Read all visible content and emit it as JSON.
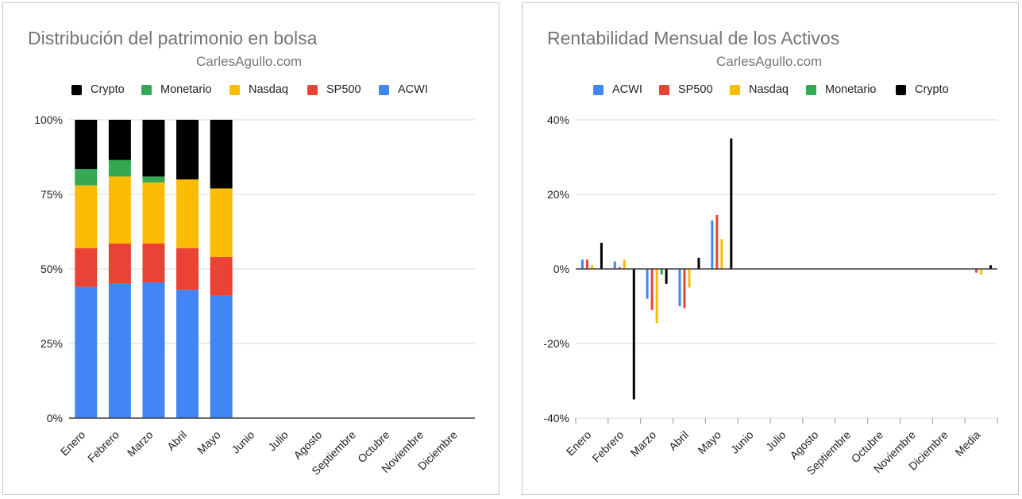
{
  "colors": {
    "ACWI": "#4285f4",
    "SP500": "#ea4335",
    "Nasdaq": "#fbbc04",
    "Monetario": "#34a853",
    "Crypto": "#000000",
    "grid": "#d9d9d9",
    "baseline": "#333333",
    "text": "#222222",
    "title": "#757575"
  },
  "chart_data": [
    {
      "type": "bar",
      "stacked": "percent",
      "title": "Distribución del patrimonio en bolsa",
      "subtitle": "CarlesAgullo.com",
      "legend_position": "top",
      "legend": [
        "Crypto",
        "Monetario",
        "Nasdaq",
        "SP500",
        "ACWI"
      ],
      "categories": [
        "Enero",
        "Febrero",
        "Marzo",
        "Abril",
        "Mayo",
        "Junio",
        "Julio",
        "Agosto",
        "Septiembre",
        "Octubre",
        "Noviembre",
        "Diciembre"
      ],
      "ylim": [
        0,
        100
      ],
      "yticks": [
        "0%",
        "25%",
        "50%",
        "75%",
        "100%"
      ],
      "grid": true,
      "series": [
        {
          "name": "ACWI",
          "values": [
            44,
            45,
            45.5,
            43,
            41,
            null,
            null,
            null,
            null,
            null,
            null,
            null
          ]
        },
        {
          "name": "SP500",
          "values": [
            13,
            13.5,
            13,
            14,
            13,
            null,
            null,
            null,
            null,
            null,
            null,
            null
          ]
        },
        {
          "name": "Nasdaq",
          "values": [
            21,
            22.5,
            20.5,
            23,
            23,
            null,
            null,
            null,
            null,
            null,
            null,
            null
          ]
        },
        {
          "name": "Monetario",
          "values": [
            5.5,
            5.5,
            2,
            0,
            0,
            null,
            null,
            null,
            null,
            null,
            null,
            null
          ]
        },
        {
          "name": "Crypto",
          "values": [
            16.5,
            13.5,
            19,
            20,
            23,
            null,
            null,
            null,
            null,
            null,
            null,
            null
          ]
        }
      ]
    },
    {
      "type": "bar",
      "title": "Rentabilidad Mensual de los Activos",
      "subtitle": "CarlesAgullo.com",
      "legend_position": "top",
      "legend": [
        "ACWI",
        "SP500",
        "Nasdaq",
        "Monetario",
        "Crypto"
      ],
      "categories": [
        "Enero",
        "Febrero",
        "Marzo",
        "Abril",
        "Mayo",
        "Junio",
        "Julio",
        "Agosto",
        "Septiembre",
        "Octubre",
        "Noviembre",
        "Diciembre",
        "Media"
      ],
      "ylim": [
        -40,
        40
      ],
      "yticks": [
        "-40%",
        "-20%",
        "0%",
        "20%",
        "40%"
      ],
      "grid": true,
      "series": [
        {
          "name": "ACWI",
          "values": [
            2.5,
            2,
            -8,
            -10,
            13,
            null,
            null,
            null,
            null,
            null,
            null,
            null,
            0
          ]
        },
        {
          "name": "SP500",
          "values": [
            2.5,
            0.5,
            -11,
            -10.5,
            14.5,
            null,
            null,
            null,
            null,
            null,
            null,
            null,
            -1
          ]
        },
        {
          "name": "Nasdaq",
          "values": [
            1,
            2.5,
            -14.5,
            -5,
            8,
            null,
            null,
            null,
            null,
            null,
            null,
            null,
            -1.5
          ]
        },
        {
          "name": "Monetario",
          "values": [
            0,
            0,
            -1.5,
            0,
            0,
            null,
            null,
            null,
            null,
            null,
            null,
            null,
            0
          ]
        },
        {
          "name": "Crypto",
          "values": [
            7,
            -35,
            -4,
            3,
            35,
            null,
            null,
            null,
            null,
            null,
            null,
            null,
            1
          ]
        }
      ]
    }
  ]
}
